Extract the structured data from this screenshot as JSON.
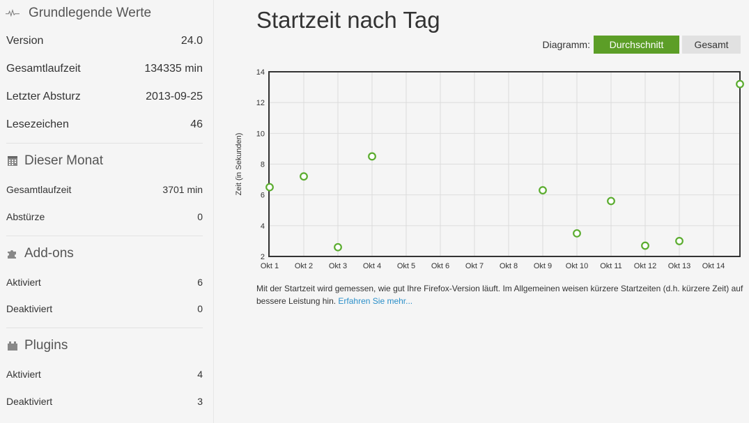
{
  "sidebar": {
    "basic": {
      "title": "Grundlegende Werte",
      "icon": "heartbeat-icon",
      "rows": [
        {
          "label": "Version",
          "value": "24.0"
        },
        {
          "label": "Gesamtlaufzeit",
          "value": "134335 min"
        },
        {
          "label": "Letzter Absturz",
          "value": "2013-09-25"
        },
        {
          "label": "Lesezeichen",
          "value": "46"
        }
      ]
    },
    "month": {
      "title": "Dieser Monat",
      "icon": "calendar-icon",
      "rows": [
        {
          "label": "Gesamtlaufzeit",
          "value": "3701 min"
        },
        {
          "label": "Abstürze",
          "value": "0"
        }
      ]
    },
    "addons": {
      "title": "Add-ons",
      "icon": "puzzle-icon",
      "rows": [
        {
          "label": "Aktiviert",
          "value": "6"
        },
        {
          "label": "Deaktiviert",
          "value": "0"
        }
      ]
    },
    "plugins": {
      "title": "Plugins",
      "icon": "plugin-icon",
      "rows": [
        {
          "label": "Aktiviert",
          "value": "4"
        },
        {
          "label": "Deaktiviert",
          "value": "3"
        }
      ]
    }
  },
  "main": {
    "title": "Startzeit nach Tag",
    "diagram_label": "Diagramm:",
    "btn_average": "Durchschnitt",
    "btn_total": "Gesamt",
    "description": "Mit der Startzeit wird gemessen, wie gut Ihre Firefox-Version läuft. Im Allgemeinen weisen kürzere Startzeiten (d.h. kürzere Zeit) auf bessere Leistung hin.",
    "learn_more": "Erfahren Sie mehr..."
  },
  "colors": {
    "accent": "#5c9e27",
    "point": "#5aac2e",
    "link": "#2a8fc9"
  },
  "chart_data": {
    "type": "scatter",
    "title": "",
    "xlabel": "",
    "ylabel": "Zeit (in Sekunden)",
    "categories": [
      "Okt 1",
      "Okt 2",
      "Okt 3",
      "Okt 4",
      "Okt 5",
      "Okt 6",
      "Okt 7",
      "Okt 8",
      "Okt 9",
      "Okt 10",
      "Okt 11",
      "Okt 12",
      "Okt 13",
      "Okt 14"
    ],
    "y_ticks": [
      2,
      4,
      6,
      8,
      10,
      12,
      14
    ],
    "ylim": [
      2,
      14
    ],
    "grid": true,
    "points": [
      {
        "x": 1,
        "y": 6.5
      },
      {
        "x": 2,
        "y": 7.2
      },
      {
        "x": 3,
        "y": 2.6
      },
      {
        "x": 4,
        "y": 8.5
      },
      {
        "x": 9,
        "y": 6.3
      },
      {
        "x": 10,
        "y": 3.5
      },
      {
        "x": 11,
        "y": 5.6
      },
      {
        "x": 12,
        "y": 2.7
      },
      {
        "x": 13,
        "y": 3.0
      },
      {
        "x": 15,
        "y": 13.2
      }
    ]
  }
}
